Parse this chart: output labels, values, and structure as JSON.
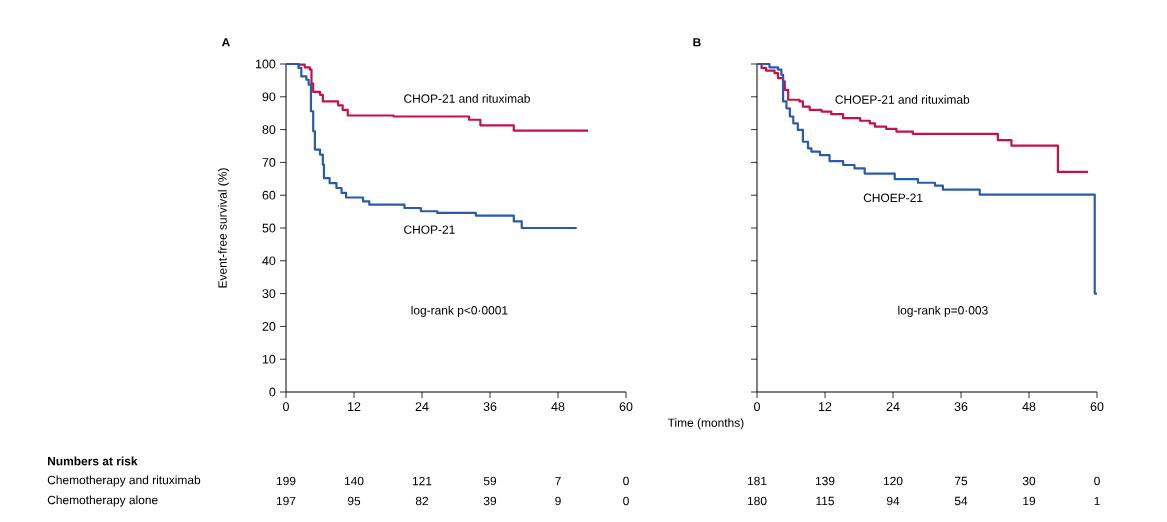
{
  "chart_data": [
    {
      "type": "step",
      "title": "A",
      "xlabel": "Time (months)",
      "ylabel": "Event-free survival (%)",
      "xlim": [
        0,
        60
      ],
      "ylim": [
        0,
        100
      ],
      "xticks": [
        0,
        12,
        24,
        36,
        48,
        60
      ],
      "yticks": [
        0,
        10,
        20,
        30,
        40,
        50,
        60,
        70,
        80,
        90,
        100
      ],
      "series": [
        {
          "name": "CHOP-21 and rituximab",
          "color": "#c4114a",
          "x": [
            0,
            2.2,
            3.3,
            4.2,
            4.5,
            4.8,
            6,
            6.5,
            9.2,
            10,
            10.9,
            19,
            32.3,
            34.3,
            40.2,
            53.3
          ],
          "values": [
            100,
            99.8,
            99,
            98.3,
            94,
            91.5,
            90.6,
            88.6,
            87.4,
            86,
            84.3,
            84,
            83,
            81.3,
            79.7,
            79.7
          ]
        },
        {
          "name": "CHOP-21",
          "color": "#2a5ba8",
          "x": [
            0,
            2.2,
            2.7,
            3.6,
            4,
            4.4,
            4.8,
            5.1,
            6,
            6.5,
            6.7,
            7.7,
            8.9,
            9.8,
            10.6,
            13.6,
            14.7,
            20.9,
            23.8,
            26.7,
            33.5,
            40.2,
            41.6,
            51.3
          ],
          "values": [
            100,
            98.8,
            96.2,
            95.2,
            93.7,
            85.6,
            79.5,
            73.9,
            72.4,
            69.3,
            65.2,
            63.7,
            62.2,
            60.7,
            59.3,
            58.1,
            57.1,
            56.1,
            55.1,
            54.6,
            53.8,
            52,
            50,
            50
          ]
        }
      ],
      "annotations": [
        "log-rank p<0·0001",
        "Numbers at risk",
        "Chemotherapy and rituximab",
        "Chemotherapy alone",
        "199",
        "140",
        "121",
        "59",
        "7",
        "0",
        "197",
        "95",
        "82",
        "39",
        "9",
        "0"
      ]
    },
    {
      "type": "step",
      "title": "B",
      "xlim": [
        0,
        60
      ],
      "ylim": [
        0,
        100
      ],
      "xticks": [
        0,
        12,
        24,
        36,
        48,
        60
      ],
      "yticks": [
        0,
        10,
        20,
        30,
        40,
        50,
        60,
        70,
        80,
        90,
        100
      ],
      "tick_labels": "x",
      "series": [
        {
          "name": "CHOEP-21 and rituximab",
          "color": "#c4114a",
          "x": [
            0,
            0.8,
            1.6,
            3.1,
            3.7,
            4.6,
            4.9,
            5.5,
            7.5,
            8.1,
            9.3,
            11.4,
            13.1,
            15.2,
            18.2,
            19.9,
            20.8,
            22.8,
            24.6,
            27.5,
            42.5,
            44.9,
            53.1,
            58.4
          ],
          "values": [
            100,
            98.8,
            98,
            97.2,
            95.7,
            94.7,
            92.1,
            89.1,
            88.6,
            87,
            86,
            85.5,
            84.7,
            83.5,
            82.7,
            81.9,
            80.9,
            80.2,
            79.4,
            78.7,
            76.8,
            75.1,
            67.1,
            67.1
          ]
        },
        {
          "name": "CHOEP-21",
          "color": "#2a5ba8",
          "x": [
            0,
            2.2,
            3.7,
            4.3,
            4.6,
            5.2,
            5.8,
            6.4,
            7.2,
            8.1,
            9,
            9.6,
            11.1,
            12.8,
            15.2,
            17.2,
            19,
            24.3,
            28.4,
            31.4,
            32.8,
            39.3,
            59.6,
            60
          ],
          "values": [
            100,
            99,
            98.3,
            96.7,
            88.6,
            86.5,
            84,
            81.9,
            79.9,
            76.3,
            74.3,
            73.3,
            72.2,
            70.4,
            69.2,
            68.2,
            66.6,
            64.9,
            63.8,
            62.9,
            61.7,
            60.2,
            30,
            30
          ]
        }
      ],
      "annotations": [
        "log-rank p=0·003",
        "181",
        "139",
        "120",
        "75",
        "30",
        "0",
        "180",
        "115",
        "94",
        "54",
        "19",
        "1"
      ]
    }
  ]
}
